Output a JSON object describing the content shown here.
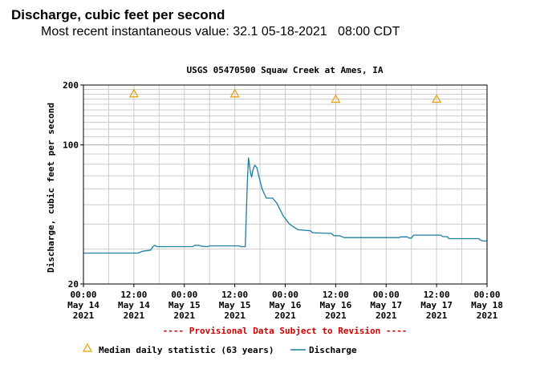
{
  "header": {
    "title": "Discharge, cubic feet per second",
    "recent_label": "Most recent instantaneous value:",
    "recent_value": "32.1",
    "recent_date": "05-18-2021",
    "recent_time": "08:00 CDT"
  },
  "chart_data": {
    "type": "line",
    "title": "USGS 05470500 Squaw Creek at Ames, IA",
    "ylabel": "Discharge, cubic feet per second",
    "xlabel": "",
    "yscale": "log",
    "ylim": [
      20,
      200
    ],
    "y_ticks": [
      20,
      100,
      200
    ],
    "xlim": [
      "2021-05-14 00:00",
      "2021-05-18 00:00"
    ],
    "x_ticks": [
      {
        "time": "00:00",
        "date": "May 14",
        "year": "2021"
      },
      {
        "time": "12:00",
        "date": "May 14",
        "year": "2021"
      },
      {
        "time": "00:00",
        "date": "May 15",
        "year": "2021"
      },
      {
        "time": "12:00",
        "date": "May 15",
        "year": "2021"
      },
      {
        "time": "00:00",
        "date": "May 16",
        "year": "2021"
      },
      {
        "time": "12:00",
        "date": "May 16",
        "year": "2021"
      },
      {
        "time": "00:00",
        "date": "May 17",
        "year": "2021"
      },
      {
        "time": "12:00",
        "date": "May 17",
        "year": "2021"
      },
      {
        "time": "00:00",
        "date": "May 18",
        "year": "2021"
      }
    ],
    "grid": true,
    "provisional_note": "---- Provisional Data Subject to Revision ----",
    "series": [
      {
        "name": "Discharge",
        "color": "#1a7fa0",
        "points": [
          [
            "2021-05-14 00:00",
            28.6
          ],
          [
            "2021-05-14 13:00",
            28.6
          ],
          [
            "2021-05-14 14:00",
            29.2
          ],
          [
            "2021-05-14 16:00",
            29.6
          ],
          [
            "2021-05-14 16:30",
            30.8
          ],
          [
            "2021-05-14 17:00",
            31.3
          ],
          [
            "2021-05-14 17:30",
            30.8
          ],
          [
            "2021-05-15 02:00",
            30.8
          ],
          [
            "2021-05-15 02:30",
            31.3
          ],
          [
            "2021-05-15 03:30",
            31.3
          ],
          [
            "2021-05-15 04:00",
            31.0
          ],
          [
            "2021-05-15 05:30",
            30.8
          ],
          [
            "2021-05-15 06:00",
            31.1
          ],
          [
            "2021-05-15 11:00",
            31.1
          ],
          [
            "2021-05-15 12:00",
            31.1
          ],
          [
            "2021-05-15 13:00",
            31.1
          ],
          [
            "2021-05-15 13:30",
            30.8
          ],
          [
            "2021-05-15 14:30",
            30.8
          ],
          [
            "2021-05-15 15:00",
            66.0
          ],
          [
            "2021-05-15 15:15",
            86.0
          ],
          [
            "2021-05-15 15:45",
            72.0
          ],
          [
            "2021-05-15 16:00",
            69.0
          ],
          [
            "2021-05-15 16:15",
            74.0
          ],
          [
            "2021-05-15 16:45",
            79.0
          ],
          [
            "2021-05-15 17:15",
            77.0
          ],
          [
            "2021-05-15 17:45",
            69.0
          ],
          [
            "2021-05-15 18:30",
            60.0
          ],
          [
            "2021-05-15 19:30",
            54.0
          ],
          [
            "2021-05-15 21:00",
            54.0
          ],
          [
            "2021-05-15 22:00",
            51.0
          ],
          [
            "2021-05-15 23:30",
            44.0
          ],
          [
            "2021-05-16 01:00",
            40.0
          ],
          [
            "2021-05-16 03:00",
            37.5
          ],
          [
            "2021-05-16 06:00",
            37.0
          ],
          [
            "2021-05-16 06:30",
            36.2
          ],
          [
            "2021-05-16 11:00",
            35.9
          ],
          [
            "2021-05-16 11:30",
            35.0
          ],
          [
            "2021-05-16 13:00",
            34.9
          ],
          [
            "2021-05-16 14:00",
            34.2
          ],
          [
            "2021-05-17 03:00",
            34.2
          ],
          [
            "2021-05-17 03:30",
            34.5
          ],
          [
            "2021-05-17 05:00",
            34.5
          ],
          [
            "2021-05-17 05:30",
            34.0
          ],
          [
            "2021-05-17 06:00",
            34.0
          ],
          [
            "2021-05-17 06:30",
            35.2
          ],
          [
            "2021-05-17 13:00",
            35.2
          ],
          [
            "2021-05-17 13:30",
            34.6
          ],
          [
            "2021-05-17 14:30",
            34.6
          ],
          [
            "2021-05-17 15:00",
            33.8
          ],
          [
            "2021-05-17 22:00",
            33.8
          ],
          [
            "2021-05-17 22:30",
            33.2
          ],
          [
            "2021-05-17 23:00",
            32.9
          ],
          [
            "2021-05-18 00:00",
            32.9
          ]
        ]
      },
      {
        "name": "Median daily statistic (63 years)",
        "marker": "triangle",
        "color": "#e8a000",
        "points": [
          [
            "2021-05-14 12:00",
            181
          ],
          [
            "2021-05-15 12:00",
            181
          ],
          [
            "2021-05-16 12:00",
            170
          ],
          [
            "2021-05-17 12:00",
            170
          ]
        ]
      }
    ]
  }
}
